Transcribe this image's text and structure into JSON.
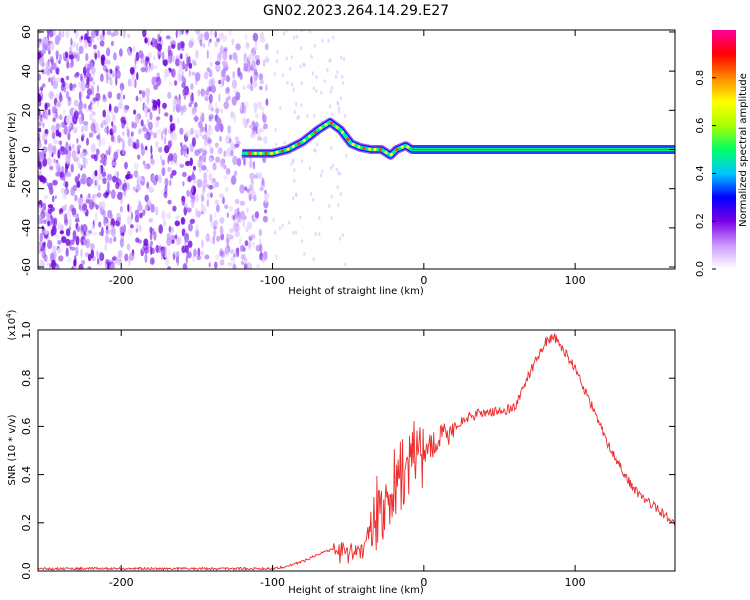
{
  "title": "GN02.2023.264.14.29.E27",
  "colors": {
    "snr_line": "#ee2b2b",
    "axes": "#000000",
    "background": "#ffffff"
  },
  "chart_data": [
    {
      "type": "heatmap",
      "xlabel": "Height of straight line (km)",
      "ylabel": "Frequency (Hz)",
      "xlim": [
        -255,
        166
      ],
      "ylim": [
        -61,
        61
      ],
      "x_ticks": [
        -200,
        -100,
        0,
        100
      ],
      "y_ticks": [
        -60,
        -40,
        -20,
        0,
        20,
        40,
        60
      ],
      "colorbar": {
        "label": "Normalized spectral amplitude",
        "range": [
          0,
          1
        ],
        "ticks": [
          "0.0",
          "0.2",
          "0.4",
          "0.6",
          "0.8"
        ],
        "tick_values": [
          0.0,
          0.2,
          0.4,
          0.6,
          0.8
        ],
        "colormap": [
          "#ffffff",
          "#cc99ff",
          "#7a00e6",
          "#0000ff",
          "#00c8ff",
          "#00ff66",
          "#aaff00",
          "#ffff00",
          "#ff8800",
          "#ff0000",
          "#ff0099"
        ]
      },
      "ridge_line": {
        "x": [
          -120,
          -110,
          -100,
          -90,
          -80,
          -70,
          -62,
          -55,
          -48,
          -42,
          -35,
          -28,
          -22,
          -18,
          -12,
          -8,
          0,
          50,
          100,
          166
        ],
        "y": [
          -2,
          -2,
          -2,
          0,
          4,
          10,
          14,
          10,
          3,
          1,
          0,
          0,
          -3,
          0,
          2,
          0,
          0,
          0,
          0,
          0
        ]
      }
    },
    {
      "type": "line",
      "xlabel": "Height of straight line (km)",
      "ylabel": "SNR (10 * v/v)",
      "multiplier": "(x10",
      "multiplier_exponent": "4",
      "multiplier_close": ")",
      "xlim": [
        -255,
        166
      ],
      "ylim": [
        0,
        1.0
      ],
      "x_ticks": [
        -200,
        -100,
        0,
        100
      ],
      "y_ticks": [
        "0.0",
        "0.2",
        "0.4",
        "0.6",
        "0.8",
        "1.0"
      ],
      "y_tick_values": [
        0.0,
        0.2,
        0.4,
        0.6,
        0.8,
        1.0
      ],
      "series": [
        {
          "x": [
            -255,
            -200,
            -150,
            -120,
            -100,
            -90,
            -80,
            -70,
            -60,
            -50,
            -40,
            -30,
            -25,
            -20,
            -15,
            -10,
            -5,
            0,
            10,
            20,
            30,
            40,
            50,
            60,
            70,
            80,
            86,
            90,
            100,
            110,
            120,
            130,
            140,
            150,
            160,
            166
          ],
          "y": [
            0.01,
            0.01,
            0.01,
            0.01,
            0.01,
            0.02,
            0.04,
            0.07,
            0.09,
            0.06,
            0.1,
            0.25,
            0.3,
            0.35,
            0.4,
            0.45,
            0.48,
            0.5,
            0.54,
            0.6,
            0.64,
            0.66,
            0.66,
            0.68,
            0.82,
            0.95,
            0.97,
            0.94,
            0.84,
            0.7,
            0.55,
            0.43,
            0.33,
            0.28,
            0.23,
            0.2
          ]
        }
      ]
    }
  ]
}
